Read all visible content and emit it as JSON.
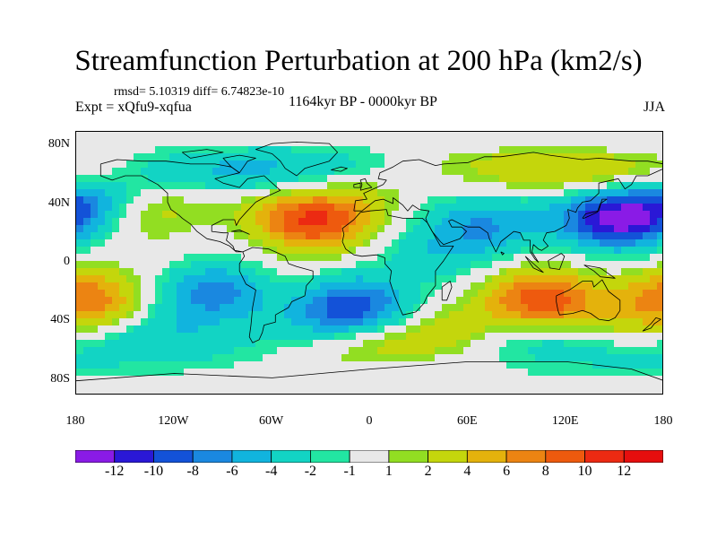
{
  "title": "Streamfunction Perturbation at 200 hPa (km2/s)",
  "stats_label": "rmsd= 5.10319 diff= 6.74823e-10",
  "experiment_label": "Expt = xQfu9-xqfua",
  "period_label": "1164kyr BP - 0000kyr BP",
  "season_label": "JJA",
  "map": {
    "projection": "cylindrical equidistant",
    "lon_range": [
      -180,
      180
    ],
    "lat_range": [
      -90,
      90
    ],
    "lat_tick_labels": [
      {
        "label": "80N",
        "lat": 80
      },
      {
        "label": "40N",
        "lat": 40
      },
      {
        "label": "0",
        "lat": 0
      },
      {
        "label": "40S",
        "lat": -40
      },
      {
        "label": "80S",
        "lat": -80
      }
    ],
    "lon_tick_labels": [
      {
        "label": "180",
        "lon": -180
      },
      {
        "label": "120W",
        "lon": -120
      },
      {
        "label": "60W",
        "lon": -60
      },
      {
        "label": "0",
        "lon": 0
      },
      {
        "label": "60E",
        "lon": 60
      },
      {
        "label": "120E",
        "lon": 120
      },
      {
        "label": "180",
        "lon": 180
      }
    ],
    "field_features": [
      {
        "sign": "positive",
        "lon": -35,
        "lat": 30,
        "value": 11,
        "region": "North Atlantic / Saharan high"
      },
      {
        "sign": "positive",
        "lon": 105,
        "lat": -25,
        "value": 10,
        "region": "Indian Ocean / Australia"
      },
      {
        "sign": "positive",
        "lon": -175,
        "lat": -25,
        "value": 8,
        "region": "South Pacific west"
      },
      {
        "sign": "positive",
        "lon": 125,
        "lat": 60,
        "value": 5,
        "region": "Siberia"
      },
      {
        "sign": "positive",
        "lon": 30,
        "lat": -50,
        "value": 5,
        "region": "Southern Ocean south of Africa"
      },
      {
        "sign": "positive",
        "lon": -140,
        "lat": 38,
        "value": 4,
        "region": "North-east Pacific"
      },
      {
        "sign": "negative",
        "lon": 150,
        "lat": 30,
        "value": -12,
        "region": "North-west Pacific"
      },
      {
        "sign": "negative",
        "lon": -10,
        "lat": -30,
        "value": -10,
        "region": "South Atlantic"
      },
      {
        "sign": "negative",
        "lon": -95,
        "lat": -20,
        "value": -7,
        "region": "South-east Pacific"
      },
      {
        "sign": "negative",
        "lon": 70,
        "lat": 25,
        "value": -6,
        "region": "Arabian Sea / South Asia"
      },
      {
        "sign": "negative",
        "lon": -175,
        "lat": 40,
        "value": -6,
        "region": "North Pacific dateline"
      },
      {
        "sign": "negative",
        "lon": -75,
        "lat": 62,
        "value": -5,
        "region": "Labrador / Greenland"
      },
      {
        "sign": "negative",
        "lon": -130,
        "lat": -50,
        "value": -4,
        "region": "Southern Pacific"
      },
      {
        "sign": "negative",
        "lon": 100,
        "lat": -55,
        "value": -4,
        "region": "Southern Indian Ocean"
      },
      {
        "sign": "negative",
        "lon": 35,
        "lat": 5,
        "value": -3,
        "region": "East Africa"
      }
    ]
  },
  "colorbar": {
    "levels": [
      -12,
      -10,
      -8,
      -6,
      -4,
      -2,
      -1,
      1,
      2,
      4,
      6,
      8,
      10,
      12
    ],
    "labels": [
      "-12",
      "-10",
      "-8",
      "-6",
      "-4",
      "-2",
      "-1",
      "1",
      "2",
      "4",
      "6",
      "8",
      "10",
      "12"
    ],
    "colors": [
      "#8a1be6",
      "#2a18d6",
      "#1352d8",
      "#1a88e0",
      "#11b4de",
      "#12d4c4",
      "#22e6a2",
      "#e8e8e8",
      "#92de22",
      "#c4d60c",
      "#e4b20c",
      "#ec8412",
      "#ee5a0e",
      "#ec2a12",
      "#e60e0e"
    ]
  }
}
